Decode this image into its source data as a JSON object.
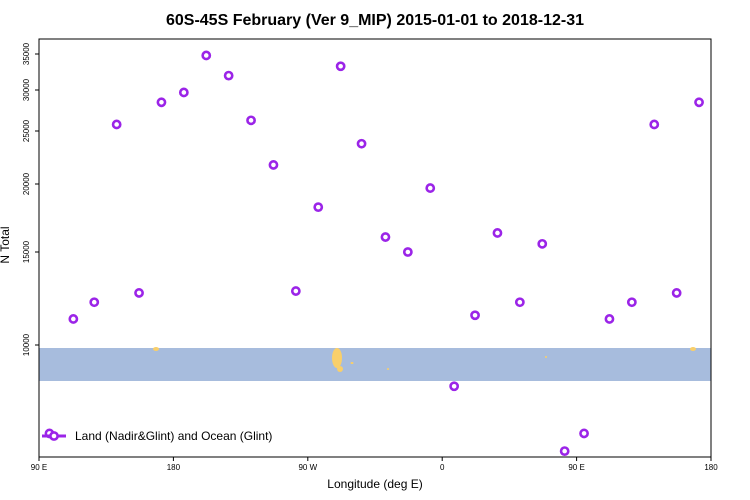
{
  "chart_data": {
    "type": "scatter",
    "title": "60S-45S February (Ver 9_MIP)   2015-01-01 to 2018-12-31",
    "xlabel": "Longitude (deg E)",
    "ylabel": "N Total",
    "x_ticks": [
      {
        "value": 90,
        "label": "90 E"
      },
      {
        "value": 180,
        "label": "180"
      },
      {
        "value": 270,
        "label": "90 W"
      },
      {
        "value": 360,
        "label": "0"
      },
      {
        "value": 450,
        "label": "90 E"
      },
      {
        "value": 540,
        "label": "180"
      }
    ],
    "y_ticks": [
      10000,
      15000,
      20000,
      25000,
      30000,
      35000
    ],
    "ylim": [
      6200,
      36300
    ],
    "xlim": [
      90,
      540
    ],
    "grid": false,
    "legend_position": "bottom-left",
    "marker_color": "#9b24e8",
    "series": [
      {
        "name": "Land (Nadir&Glint) and Ocean (Glint)",
        "points": [
          {
            "x": 97,
            "y": 7000
          },
          {
            "x": 113,
            "y": 11400
          },
          {
            "x": 127,
            "y": 12300
          },
          {
            "x": 142,
            "y": 25800
          },
          {
            "x": 157,
            "y": 12800
          },
          {
            "x": 172,
            "y": 28500
          },
          {
            "x": 187,
            "y": 29700
          },
          {
            "x": 202,
            "y": 34800
          },
          {
            "x": 217,
            "y": 32000
          },
          {
            "x": 232,
            "y": 26300
          },
          {
            "x": 247,
            "y": 21800
          },
          {
            "x": 262,
            "y": 12900
          },
          {
            "x": 277,
            "y": 18300
          },
          {
            "x": 292,
            "y": 33300
          },
          {
            "x": 306,
            "y": 23800
          },
          {
            "x": 322,
            "y": 16100
          },
          {
            "x": 337,
            "y": 15000
          },
          {
            "x": 352,
            "y": 19700
          },
          {
            "x": 368,
            "y": 8600
          },
          {
            "x": 382,
            "y": 11600
          },
          {
            "x": 397,
            "y": 16400
          },
          {
            "x": 412,
            "y": 12300
          },
          {
            "x": 427,
            "y": 15600
          },
          {
            "x": 442,
            "y": 6400
          },
          {
            "x": 455,
            "y": 7000
          },
          {
            "x": 472,
            "y": 11400
          },
          {
            "x": 487,
            "y": 12300
          },
          {
            "x": 502,
            "y": 25800
          },
          {
            "x": 517,
            "y": 12800
          },
          {
            "x": 532,
            "y": 28500
          }
        ]
      }
    ]
  },
  "map_colors": {
    "ocean": "#a7bcdd",
    "land": "#f9cf6a"
  }
}
